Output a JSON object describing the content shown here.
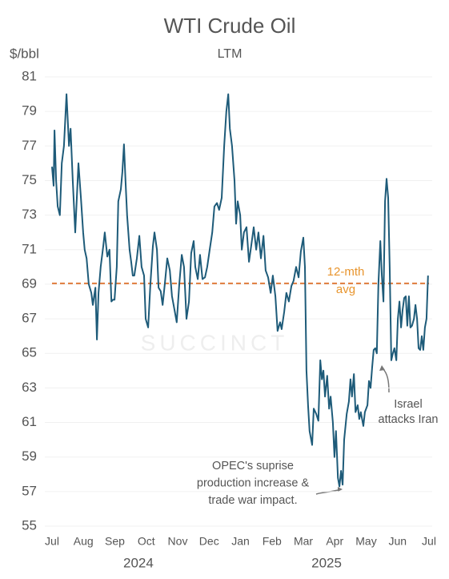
{
  "chart_data": {
    "type": "line",
    "title": "WTI Crude Oil",
    "subtitle": "LTM",
    "y_unit": "$/bbl",
    "watermark": "SUCCINCT",
    "xlim": [
      0,
      12
    ],
    "xticks": [
      {
        "value": 0,
        "label": "Jul"
      },
      {
        "value": 1,
        "label": "Aug"
      },
      {
        "value": 2,
        "label": "Sep"
      },
      {
        "value": 3,
        "label": "Oct"
      },
      {
        "value": 4,
        "label": "Nov"
      },
      {
        "value": 5,
        "label": "Dec"
      },
      {
        "value": 6,
        "label": "Jan"
      },
      {
        "value": 7,
        "label": "Feb"
      },
      {
        "value": 8,
        "label": "Mar"
      },
      {
        "value": 9,
        "label": "Apr"
      },
      {
        "value": 10,
        "label": "May"
      },
      {
        "value": 11,
        "label": "Jun"
      },
      {
        "value": 12,
        "label": "Jul"
      }
    ],
    "year_labels": [
      {
        "value": 2.75,
        "label": "2024"
      },
      {
        "value": 8.74,
        "label": "2025"
      }
    ],
    "ylim": [
      55,
      81
    ],
    "yticks": [
      55,
      57,
      59,
      61,
      63,
      65,
      67,
      69,
      71,
      73,
      75,
      77,
      79,
      81
    ],
    "grid": true,
    "series": [
      {
        "name": "WTI",
        "color": "#1e5b79",
        "x": [
          0,
          0.05,
          0.08,
          0.13,
          0.18,
          0.25,
          0.31,
          0.38,
          0.46,
          0.54,
          0.59,
          0.66,
          0.74,
          0.79,
          0.84,
          0.92,
          0.99,
          1.04,
          1.1,
          1.17,
          1.25,
          1.3,
          1.38,
          1.43,
          1.48,
          1.55,
          1.63,
          1.68,
          1.76,
          1.83,
          1.89,
          1.94,
          1.99,
          2.06,
          2.11,
          2.19,
          2.24,
          2.29,
          2.34,
          2.39,
          2.47,
          2.52,
          2.57,
          2.62,
          2.7,
          2.78,
          2.85,
          2.93,
          2.98,
          3.06,
          3.13,
          3.21,
          3.26,
          3.34,
          3.39,
          3.46,
          3.52,
          3.59,
          3.67,
          3.75,
          3.82,
          3.9,
          3.97,
          4.05,
          4.13,
          4.2,
          4.28,
          4.36,
          4.43,
          4.51,
          4.56,
          4.64,
          4.71,
          4.79,
          4.87,
          4.94,
          5.02,
          5.1,
          5.17,
          5.25,
          5.32,
          5.4,
          5.48,
          5.55,
          5.61,
          5.66,
          5.73,
          5.81,
          5.86,
          5.91,
          5.99,
          6.04,
          6.11,
          6.19,
          6.27,
          6.34,
          6.42,
          6.5,
          6.57,
          6.65,
          6.73,
          6.8,
          6.88,
          6.96,
          7.03,
          7.11,
          7.18,
          7.26,
          7.31,
          7.39,
          7.46,
          7.54,
          7.62,
          7.69,
          7.77,
          7.85,
          7.92,
          8.0,
          8.05,
          8.1,
          8.15,
          8.2,
          8.28,
          8.33,
          8.41,
          8.48,
          8.54,
          8.59,
          8.64,
          8.69,
          8.76,
          8.82,
          8.87,
          8.94,
          8.99,
          9.04,
          9.1,
          9.15,
          9.2,
          9.25,
          9.3,
          9.38,
          9.45,
          9.5,
          9.55,
          9.61,
          9.66,
          9.73,
          9.78,
          9.83,
          9.91,
          9.96,
          10.04,
          10.09,
          10.14,
          10.19,
          10.24,
          10.29,
          10.34,
          10.39,
          10.45,
          10.5,
          10.55,
          10.6,
          10.65,
          10.7,
          10.75,
          10.8,
          10.85,
          10.9,
          10.96,
          11.01,
          11.06,
          11.11,
          11.16,
          11.21,
          11.26,
          11.31,
          11.36,
          11.41,
          11.46,
          11.52,
          11.57,
          11.62,
          11.67,
          11.72,
          11.77,
          11.82,
          11.87,
          11.92,
          11.97
        ],
        "values": [
          75.8,
          74.7,
          77.9,
          75,
          73.5,
          73,
          76,
          77,
          80,
          77,
          78,
          75,
          72,
          74,
          76,
          74,
          72,
          71,
          70.5,
          69,
          68.5,
          67.8,
          68.8,
          65.8,
          68.5,
          70,
          71.2,
          72,
          70.6,
          71,
          68,
          68.1,
          68.1,
          70,
          73.8,
          74.5,
          75.5,
          77.1,
          75,
          73,
          71,
          70.3,
          69.5,
          69.5,
          70.5,
          71.8,
          70,
          69.5,
          67,
          66.5,
          69,
          71.2,
          72,
          71,
          68.8,
          68.6,
          67.8,
          69,
          70.5,
          69.8,
          68.3,
          67.5,
          66.8,
          69,
          70.7,
          70,
          67,
          68,
          70.8,
          71.5,
          70,
          69.3,
          70.7,
          69.3,
          69.4,
          70,
          71,
          72,
          73.5,
          73.7,
          73.3,
          74,
          77,
          79,
          80,
          78,
          77,
          75,
          72.5,
          73.8,
          73,
          71,
          72,
          72.3,
          70.3,
          71.2,
          72.3,
          71,
          72,
          70.5,
          71.8,
          69.8,
          69.4,
          68.5,
          69.5,
          68.3,
          66.3,
          66.8,
          66.4,
          67.4,
          68.5,
          68,
          68.9,
          69.2,
          70,
          69.4,
          70.9,
          71.7,
          70,
          64,
          62,
          60.5,
          59.7,
          61.8,
          61.5,
          61.1,
          64.6,
          63.5,
          64,
          62.5,
          63.7,
          61.8,
          62.5,
          61,
          59,
          60.5,
          57.8,
          57.3,
          58.2,
          57.4,
          60,
          61.5,
          62.2,
          63.5,
          62.5,
          63.8,
          61.6,
          62,
          61.2,
          61.6,
          60.8,
          61.6,
          62,
          63.4,
          63,
          64.2,
          65.2,
          65.3,
          65,
          69,
          71.5,
          69.5,
          68,
          73.8,
          75.1,
          74,
          70,
          64.6,
          65,
          65.3,
          64.6,
          67,
          68,
          66.5,
          67.5,
          68.2,
          68.3,
          66.6,
          68.3,
          66.5,
          66.6,
          67,
          67.8,
          67,
          65.3,
          65.2,
          66,
          65.2,
          66.5,
          67,
          69.5
        ]
      }
    ],
    "avg_line": {
      "value": 69.05,
      "color": "#e07b3c",
      "label": [
        "12-mth",
        "avg"
      ],
      "label_color": "#e8952e"
    },
    "annotations": [
      {
        "text": [
          "OPEC's suprise",
          "production increase &",
          "trade war impact."
        ]
      },
      {
        "text": [
          "Israel",
          "attacks Iran"
        ]
      }
    ]
  }
}
